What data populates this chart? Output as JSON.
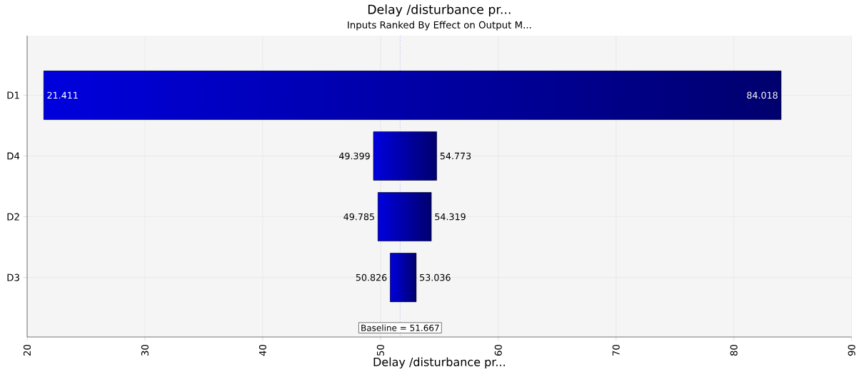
{
  "chart_data": {
    "type": "bar",
    "orientation": "horizontal",
    "title": "Delay /disturbance pr...",
    "subtitle": "Inputs Ranked By Effect on Output M...",
    "xlabel": "Delay /disturbance pr...",
    "categories": [
      "D1",
      "D4",
      "D2",
      "D3"
    ],
    "base": [
      21.411,
      49.399,
      49.785,
      50.826
    ],
    "values": [
      62.607,
      5.374,
      4.534,
      2.21
    ],
    "color": "#0000c8",
    "xlim": [
      20,
      90
    ],
    "xticks": [
      20,
      30,
      40,
      50,
      60,
      70,
      80,
      90
    ],
    "grid": true,
    "ref_lines": [
      {
        "axis": "x",
        "value": 51.667,
        "label": "Baseline = 51.667",
        "color": "#0000ff",
        "line_style": "dotted"
      }
    ],
    "annotations": [
      {
        "text": "21.411",
        "x": 21.411,
        "y": "D1"
      },
      {
        "text": "84.018",
        "x": 84.018,
        "y": "D1"
      },
      {
        "text": "49.399",
        "x": 49.399,
        "y": "D4"
      },
      {
        "text": "54.773",
        "x": 54.773,
        "y": "D4"
      },
      {
        "text": "49.785",
        "x": 49.785,
        "y": "D2"
      },
      {
        "text": "54.319",
        "x": 54.319,
        "y": "D2"
      },
      {
        "text": "50.826",
        "x": 50.826,
        "y": "D3"
      },
      {
        "text": "53.036",
        "x": 53.036,
        "y": "D3"
      }
    ]
  }
}
